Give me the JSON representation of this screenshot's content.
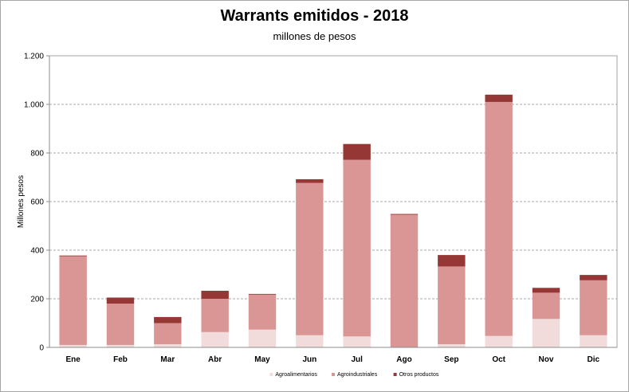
{
  "chart_data": {
    "type": "bar",
    "stacked": true,
    "title": "Warrants  emitidos  - 2018",
    "subtitle": "millones de pesos",
    "ylabel": "Millones pesos",
    "xlabel": "",
    "ylim": [
      0,
      1200
    ],
    "yticks": [
      0,
      200,
      400,
      600,
      800,
      1000,
      1200
    ],
    "ytick_labels": [
      "0",
      "200",
      "400",
      "600",
      "800",
      "1.000",
      "1.200"
    ],
    "grid": true,
    "legend_position": "bottom",
    "categories": [
      "Ene",
      "Feb",
      "Mar",
      "Abr",
      "May",
      "Jun",
      "Jul",
      "Ago",
      "Sep",
      "Oct",
      "Nov",
      "Dic"
    ],
    "series": [
      {
        "name": "Agroalimentarios",
        "color": "#f2dcdb",
        "values": [
          10,
          10,
          13,
          63,
          73,
          50,
          45,
          0,
          13,
          47,
          117,
          50
        ]
      },
      {
        "name": "Agroindustriales",
        "color": "#d99694",
        "values": [
          365,
          170,
          87,
          137,
          144,
          627,
          727,
          546,
          320,
          963,
          108,
          226
        ]
      },
      {
        "name": "Otros productos",
        "color": "#953735",
        "values": [
          3,
          25,
          25,
          33,
          3,
          15,
          65,
          3,
          47,
          30,
          20,
          22
        ]
      }
    ]
  }
}
